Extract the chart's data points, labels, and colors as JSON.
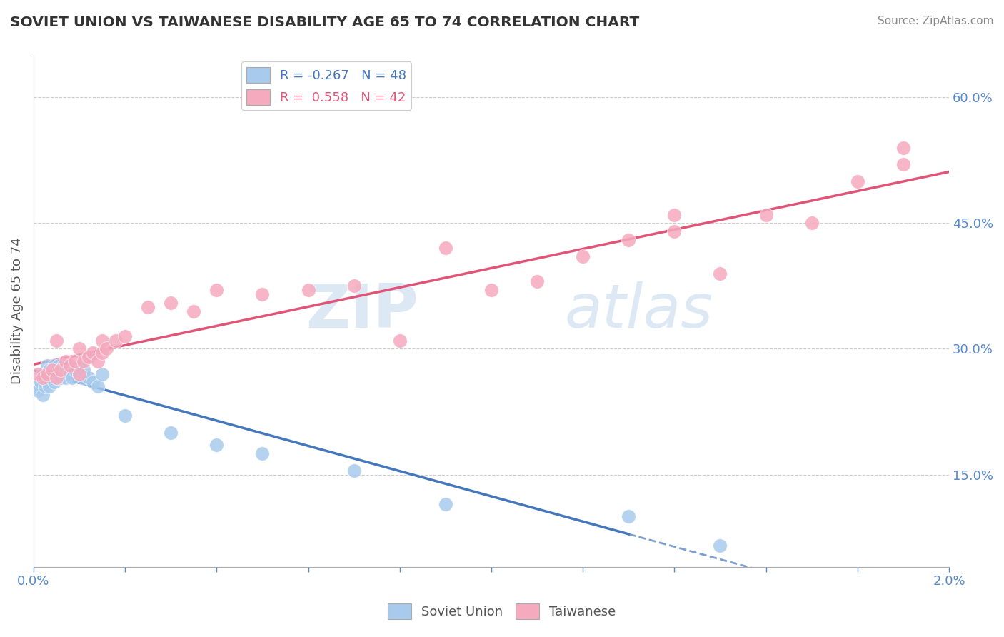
{
  "title": "SOVIET UNION VS TAIWANESE DISABILITY AGE 65 TO 74 CORRELATION CHART",
  "source_text": "Source: ZipAtlas.com",
  "ylabel": "Disability Age 65 to 74",
  "watermark_zip": "ZIP",
  "watermark_atlas": "atlas",
  "xlim": [
    0.0,
    0.02
  ],
  "ylim": [
    0.04,
    0.65
  ],
  "yticks": [
    0.15,
    0.3,
    0.45,
    0.6
  ],
  "ytick_labels": [
    "15.0%",
    "30.0%",
    "45.0%",
    "60.0%"
  ],
  "xticks": [
    0.0,
    0.002,
    0.004,
    0.006,
    0.008,
    0.01,
    0.012,
    0.014,
    0.016,
    0.018,
    0.02
  ],
  "xtick_labels": [
    "0.0%",
    "",
    "",
    "",
    "",
    "",
    "",
    "",
    "",
    "",
    "2.0%"
  ],
  "soviet_R": -0.267,
  "soviet_N": 48,
  "taiwanese_R": 0.558,
  "taiwanese_N": 42,
  "soviet_color": "#a8caed",
  "taiwanese_color": "#f5aabe",
  "soviet_line_color": "#4477bb",
  "taiwanese_line_color": "#e05577",
  "axis_color": "#5588cc",
  "grid_color": "#cccccc",
  "title_color": "#333333",
  "legend_label_soviet": "Soviet Union",
  "legend_label_taiwanese": "Taiwanese",
  "soviet_x": [
    5e-05,
    0.0001,
    0.00015,
    0.0002,
    0.0002,
    0.00025,
    0.00025,
    0.0003,
    0.0003,
    0.0003,
    0.00035,
    0.00035,
    0.0004,
    0.0004,
    0.00045,
    0.00045,
    0.0005,
    0.0005,
    0.0005,
    0.00055,
    0.00055,
    0.0006,
    0.0006,
    0.00065,
    0.00065,
    0.0007,
    0.0007,
    0.00075,
    0.0008,
    0.0008,
    0.00085,
    0.0009,
    0.001,
    0.001,
    0.0011,
    0.0011,
    0.0012,
    0.0013,
    0.0014,
    0.0015,
    0.002,
    0.003,
    0.004,
    0.005,
    0.007,
    0.009,
    0.013,
    0.015
  ],
  "soviet_y": [
    0.255,
    0.25,
    0.26,
    0.27,
    0.245,
    0.265,
    0.255,
    0.27,
    0.26,
    0.28,
    0.255,
    0.275,
    0.265,
    0.27,
    0.28,
    0.26,
    0.27,
    0.275,
    0.265,
    0.27,
    0.28,
    0.275,
    0.265,
    0.28,
    0.27,
    0.275,
    0.265,
    0.28,
    0.275,
    0.27,
    0.265,
    0.275,
    0.27,
    0.28,
    0.265,
    0.275,
    0.265,
    0.26,
    0.255,
    0.27,
    0.22,
    0.2,
    0.185,
    0.175,
    0.155,
    0.115,
    0.1,
    0.065
  ],
  "taiwanese_x": [
    0.0001,
    0.0002,
    0.0003,
    0.0004,
    0.0005,
    0.0005,
    0.0006,
    0.0007,
    0.0008,
    0.0009,
    0.001,
    0.001,
    0.0011,
    0.0012,
    0.0013,
    0.0014,
    0.0015,
    0.0015,
    0.0016,
    0.0018,
    0.002,
    0.0025,
    0.003,
    0.0035,
    0.004,
    0.005,
    0.006,
    0.007,
    0.008,
    0.009,
    0.01,
    0.011,
    0.012,
    0.013,
    0.014,
    0.015,
    0.016,
    0.017,
    0.018,
    0.019,
    0.014,
    0.019
  ],
  "taiwanese_y": [
    0.27,
    0.265,
    0.27,
    0.275,
    0.265,
    0.31,
    0.275,
    0.285,
    0.28,
    0.285,
    0.27,
    0.3,
    0.285,
    0.29,
    0.295,
    0.285,
    0.295,
    0.31,
    0.3,
    0.31,
    0.315,
    0.35,
    0.355,
    0.345,
    0.37,
    0.365,
    0.37,
    0.375,
    0.31,
    0.42,
    0.37,
    0.38,
    0.41,
    0.43,
    0.44,
    0.39,
    0.46,
    0.45,
    0.5,
    0.54,
    0.46,
    0.52
  ]
}
